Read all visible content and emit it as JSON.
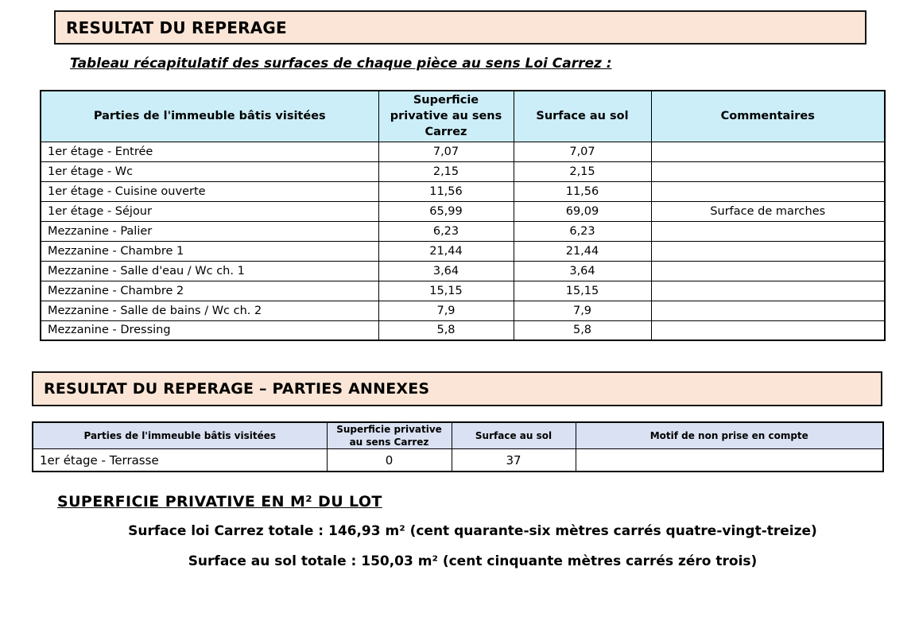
{
  "section1": {
    "title": "RESULTAT DU REPERAGE",
    "subtitle": "Tableau récapitulatif des surfaces de chaque pièce au sens Loi Carrez :"
  },
  "table1": {
    "headers": [
      "Parties de l'immeuble bâtis visitées",
      "Superficie privative au sens Carrez",
      "Surface au sol",
      "Commentaires"
    ],
    "rows": [
      {
        "room": "1er étage - Entrée",
        "carrez": "7,07",
        "floor": "7,07",
        "comment": ""
      },
      {
        "room": "1er étage - Wc",
        "carrez": "2,15",
        "floor": "2,15",
        "comment": ""
      },
      {
        "room": "1er étage - Cuisine ouverte",
        "carrez": "11,56",
        "floor": "11,56",
        "comment": ""
      },
      {
        "room": "1er étage - Séjour",
        "carrez": "65,99",
        "floor": "69,09",
        "comment": "Surface de marches"
      },
      {
        "room": "Mezzanine - Palier",
        "carrez": "6,23",
        "floor": "6,23",
        "comment": ""
      },
      {
        "room": "Mezzanine - Chambre 1",
        "carrez": "21,44",
        "floor": "21,44",
        "comment": ""
      },
      {
        "room": "Mezzanine - Salle d'eau / Wc ch. 1",
        "carrez": "3,64",
        "floor": "3,64",
        "comment": ""
      },
      {
        "room": "Mezzanine - Chambre 2",
        "carrez": "15,15",
        "floor": "15,15",
        "comment": ""
      },
      {
        "room": "Mezzanine - Salle de bains / Wc ch. 2",
        "carrez": "7,9",
        "floor": "7,9",
        "comment": ""
      },
      {
        "room": "Mezzanine - Dressing",
        "carrez": "5,8",
        "floor": "5,8",
        "comment": ""
      }
    ]
  },
  "section2": {
    "title": "RESULTAT DU REPERAGE – PARTIES ANNEXES"
  },
  "table2": {
    "headers": [
      "Parties de l'immeuble bâtis visitées",
      "Superficie privative au sens Carrez",
      "Surface au sol",
      "Motif de non prise en compte"
    ],
    "rows": [
      {
        "room": "1er étage - Terrasse",
        "carrez": "0",
        "floor": "37",
        "motif": ""
      }
    ]
  },
  "summary": {
    "title": "SUPERFICIE PRIVATIVE EN M² DU LOT",
    "carrez_total_line": "Surface loi Carrez totale : 146,93 m² (cent quarante-six mètres carrés quatre-vingt-treize)",
    "floor_total_line": "Surface au sol totale : 150,03 m² (cent cinquante mètres carrés zéro trois)"
  },
  "colors": {
    "section_header_bg": "#FBE5D6",
    "table1_header_bg": "#CBEEF8",
    "table2_header_bg": "#D9E1F2",
    "border": "#000000",
    "text": "#000000"
  }
}
